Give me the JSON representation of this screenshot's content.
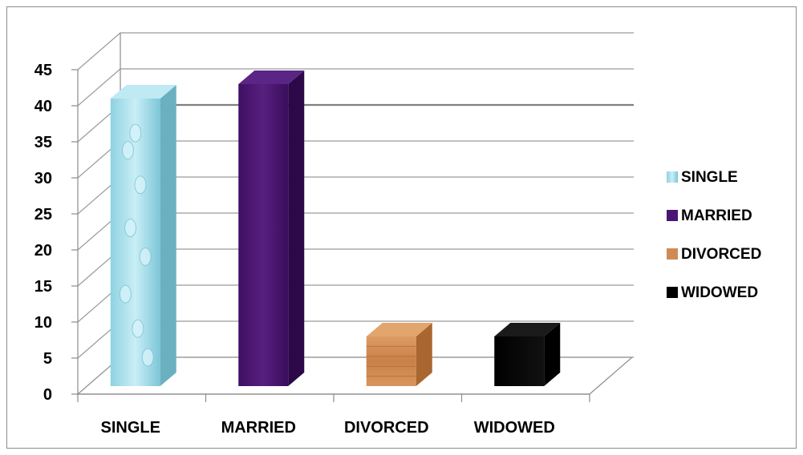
{
  "chart_data": {
    "type": "bar",
    "title": "",
    "xlabel": "",
    "ylabel": "",
    "categories": [
      "SINGLE",
      "MARRIED",
      "DIVORCED",
      "WIDOWED"
    ],
    "values": [
      41,
      43,
      8,
      8
    ],
    "ylim": [
      0,
      45
    ],
    "yticks": [
      "0",
      "5",
      "10",
      "15",
      "20",
      "25",
      "30",
      "35",
      "40",
      "45"
    ],
    "grid": true,
    "legend_position": "right",
    "legend": [
      "SINGLE",
      "MARRIED",
      "DIVORCED",
      "WIDOWED"
    ],
    "colors": {
      "SINGLE": "#a8e0ec",
      "MARRIED": "#4b1673",
      "DIVORCED": "#d08b54",
      "WIDOWED": "#000000"
    }
  }
}
